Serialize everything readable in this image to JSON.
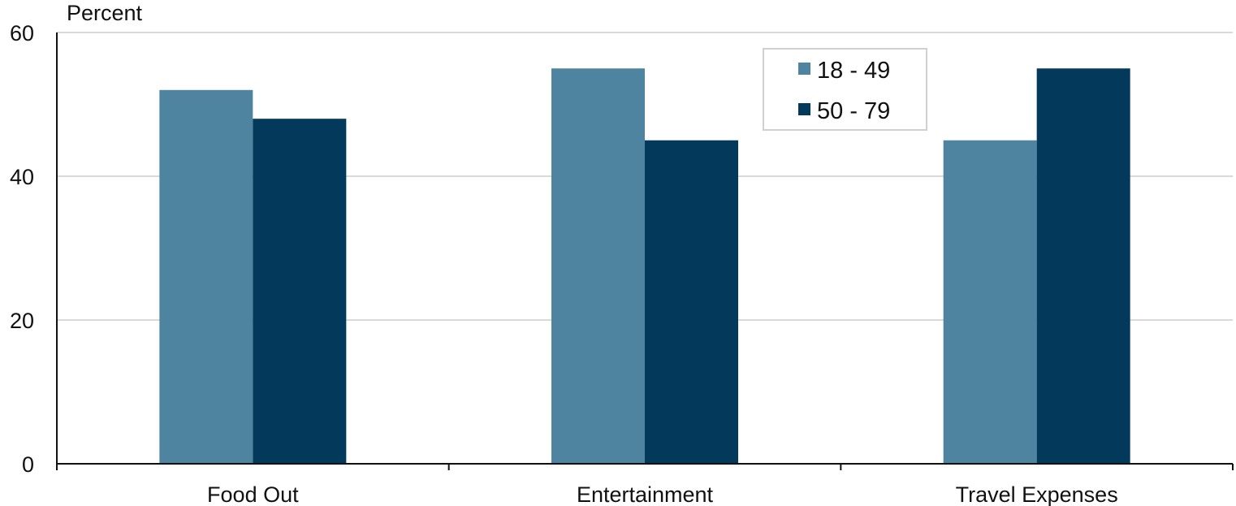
{
  "chart_data": {
    "type": "bar",
    "title": "",
    "ylabel": "Percent",
    "xlabel": "",
    "categories": [
      "Food Out",
      "Entertainment",
      "Travel Expenses"
    ],
    "series": [
      {
        "name": "18 - 49",
        "color": "#4e84a0",
        "values": [
          52,
          55,
          45
        ]
      },
      {
        "name": "50 - 79",
        "color": "#03395a",
        "values": [
          48,
          45,
          55
        ]
      }
    ],
    "ylim": [
      0,
      60
    ],
    "yticks": [
      0,
      20,
      40,
      60
    ],
    "grid": true,
    "legend_position": "top-right"
  }
}
